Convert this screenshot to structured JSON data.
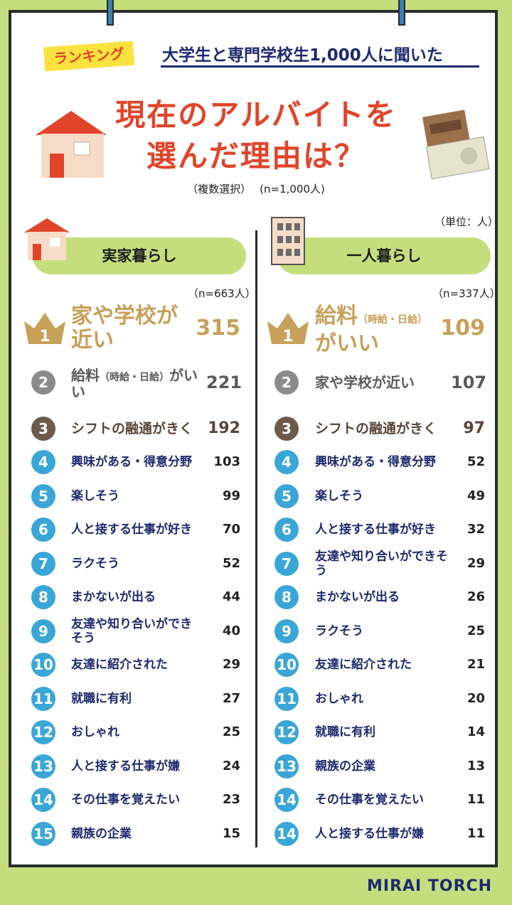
{
  "header": {
    "badge": "ランキング",
    "subtitle": "大学生と専門学校生1,000人に聞いた",
    "title_line1": "現在のアルバイトを",
    "title_line2": "選んだ理由は？",
    "note_multi": "（複数選択）",
    "note_n": "(n=1,000人)",
    "unit": "（単位：人）"
  },
  "brand": "MIRAI TORCH",
  "chart_data": [
    {
      "type": "bar",
      "title": "実家暮らし",
      "n_label": "（n=663人）",
      "categories": [
        "家や学校が近い",
        "給料（時給・日給）がいい",
        "シフトの融通がきく",
        "興味がある・得意分野",
        "楽しそう",
        "人と接する仕事が好き",
        "ラクそう",
        "まかないが出る",
        "友達や知り合いができそう",
        "友達に紹介された",
        "就職に有利",
        "おしゃれ",
        "人と接する仕事が嫌",
        "その仕事を覚えたい",
        "親族の企業"
      ],
      "ranks": [
        "1",
        "2",
        "3",
        "4",
        "5",
        "6",
        "7",
        "8",
        "9",
        "10",
        "11",
        "12",
        "13",
        "14",
        "15"
      ],
      "values": [
        315,
        221,
        192,
        103,
        99,
        70,
        52,
        44,
        40,
        29,
        27,
        25,
        24,
        23,
        15
      ]
    },
    {
      "type": "bar",
      "title": "一人暮らし",
      "n_label": "（n=337人）",
      "categories": [
        "給料（時給・日給）がいい",
        "家や学校が近い",
        "シフトの融通がきく",
        "興味がある・得意分野",
        "楽しそう",
        "人と接する仕事が好き",
        "友達や知り合いができそう",
        "まかないが出る",
        "ラクそう",
        "友達に紹介された",
        "おしゃれ",
        "就職に有利",
        "親族の企業",
        "その仕事を覚えたい",
        "人と接する仕事が嫌"
      ],
      "ranks": [
        "1",
        "2",
        "3",
        "4",
        "5",
        "6",
        "7",
        "8",
        "9",
        "10",
        "11",
        "12",
        "13",
        "14",
        "14"
      ],
      "values": [
        109,
        107,
        97,
        52,
        49,
        32,
        29,
        26,
        25,
        21,
        20,
        14,
        13,
        11,
        11
      ]
    }
  ]
}
